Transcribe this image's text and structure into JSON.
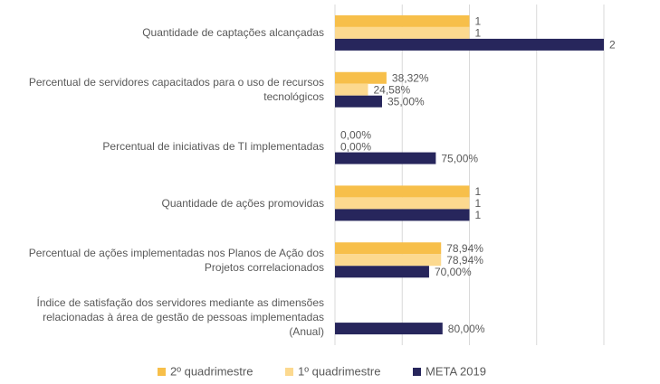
{
  "chart_data": {
    "type": "hbar",
    "categories": [
      "Quantidade de captações alcançadas",
      "Percentual de servidores capacitados para o uso de recursos\ntecnológicos",
      "Percentual de iniciativas de TI implementadas",
      "Quantidade de ações promovidas",
      "Percentual de ações implementadas nos Planos de Ação dos\nProjetos correlacionados",
      "Índice de satisfação dos servidores mediante as dimensões\nrelacionadas à área de gestão de pessoas implementadas\n(Anual)"
    ],
    "series": [
      {
        "name": "2º quadrimestre",
        "color": "#f7bf4a",
        "values": [
          1,
          0.3832,
          0,
          1,
          0.7894,
          null
        ],
        "value_labels": [
          "1",
          "38,32%",
          "0,00%",
          "1",
          "78,94%",
          null
        ]
      },
      {
        "name": "1º quadrimestre",
        "color": "#fcd98f",
        "values": [
          1,
          0.2458,
          0,
          1,
          0.7894,
          null
        ],
        "value_labels": [
          "1",
          "24,58%",
          "0,00%",
          "1",
          "78,94%",
          null
        ]
      },
      {
        "name": "META 2019",
        "color": "#27265c",
        "values": [
          2,
          0.35,
          0.75,
          1,
          0.7,
          0.8
        ],
        "value_labels": [
          "2",
          "35,00%",
          "75,00%",
          "1",
          "70,00%",
          "80,00%"
        ]
      }
    ],
    "xlim": [
      0,
      2
    ],
    "xticks": [
      0,
      0.5,
      1,
      1.5,
      2
    ],
    "grid": true,
    "legend": "bottom"
  }
}
